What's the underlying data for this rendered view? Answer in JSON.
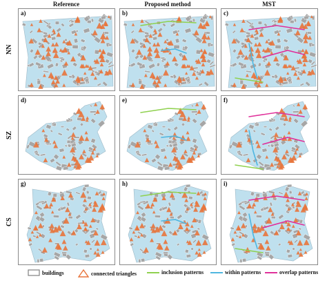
{
  "columns": [
    "Reference",
    "Proposed method",
    "MST"
  ],
  "rows": [
    {
      "label": "NN",
      "panels": [
        "a)",
        "b)",
        "c)"
      ]
    },
    {
      "label": "SZ",
      "panels": [
        "d)",
        "e)",
        "f)"
      ]
    },
    {
      "label": "CS",
      "panels": [
        "g)",
        "h)",
        "i)"
      ]
    }
  ],
  "legend": [
    {
      "label": "buildings",
      "symbol": "rect",
      "color": "#808080"
    },
    {
      "label": "connected triangles",
      "symbol": "triangle",
      "color": "#e8743b"
    },
    {
      "label": "inclusion patterns",
      "symbol": "line",
      "color": "#8fd14f"
    },
    {
      "label": "within patterns",
      "symbol": "line",
      "color": "#4fb6e0"
    },
    {
      "label": "overlap patterns",
      "symbol": "line",
      "color": "#e0309a"
    }
  ],
  "colors": {
    "building_fill": "#a6a6a6",
    "triangle_fill": "#bfe0ee",
    "connected_triangle": "#e8743b",
    "inclusion": "#8fd14f",
    "within": "#4fb6e0",
    "overlap": "#e0309a"
  }
}
